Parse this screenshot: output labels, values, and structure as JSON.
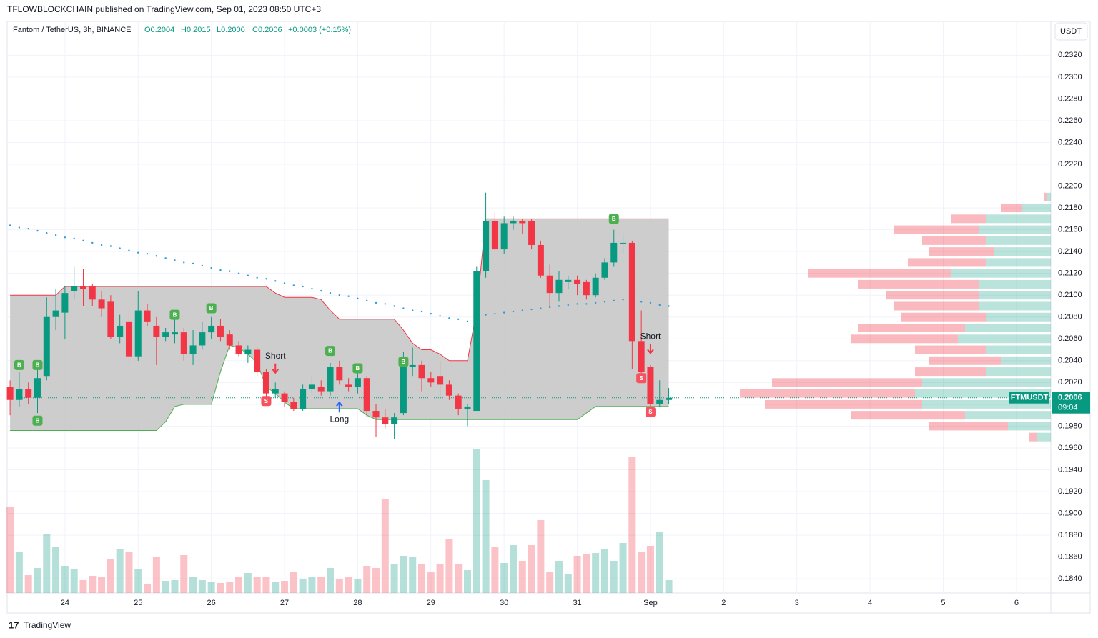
{
  "header": {
    "published": "TFLOWBLOCKCHAIN published on TradingView.com, Sep 01, 2023 08:50 UTC+3",
    "symbol": "Fantom / TetherUS, 3h, BINANCE",
    "open": "O0.2004",
    "high": "H0.2015",
    "low": "L0.2000",
    "close": "C0.2006",
    "change": "+0.0003 (+0.15%)",
    "currency": "USDT"
  },
  "footer": {
    "brand": "TradingView"
  },
  "chart_data": {
    "type": "candlestick",
    "x": [
      23.25,
      23.375,
      23.5,
      23.625,
      23.75,
      23.875,
      24,
      24.125,
      24.25,
      24.375,
      24.5,
      24.625,
      24.75,
      24.875,
      25,
      25.125,
      25.25,
      25.375,
      25.5,
      25.625,
      25.75,
      25.875,
      26,
      26.125,
      26.25,
      26.375,
      26.5,
      26.625,
      26.75,
      26.875,
      27,
      27.125,
      27.25,
      27.375,
      27.5,
      27.625,
      27.75,
      27.875,
      28,
      28.125,
      28.25,
      28.375,
      28.5,
      28.625,
      28.75,
      28.875,
      29,
      29.125,
      29.25,
      29.375,
      29.5,
      29.625,
      29.75,
      29.875,
      30,
      30.125,
      30.25,
      30.375,
      30.5,
      30.625,
      30.75,
      30.875,
      31,
      31.125,
      31.25,
      31.375,
      31.5,
      31.625,
      31.75,
      31.875,
      32,
      32.125,
      32.25
    ],
    "open": [
      0.2016,
      0.2004,
      0.2014,
      0.2006,
      0.2026,
      0.208,
      0.2084,
      0.2104,
      0.2108,
      0.2108,
      0.2096,
      0.2094,
      0.2062,
      0.2076,
      0.2044,
      0.2086,
      0.2072,
      0.2062,
      0.2064,
      0.2066,
      0.2046,
      0.2054,
      0.2066,
      0.2072,
      0.2064,
      0.2054,
      0.2046,
      0.205,
      0.203,
      0.201,
      0.201,
      0.2002,
      0.1996,
      0.2014,
      0.2016,
      0.2012,
      0.2034,
      0.2018,
      0.2016,
      0.2024,
      0.1994,
      0.1988,
      0.1982,
      0.1992,
      0.2034,
      0.2036,
      0.2024,
      0.2026,
      0.2018,
      0.2008,
      0.1996,
      0.1994,
      0.2122,
      0.2168,
      0.2142,
      0.2166,
      0.2168,
      0.2168,
      0.2146,
      0.2118,
      0.2102,
      0.2112,
      0.2114,
      0.2112,
      0.21,
      0.2116,
      0.213,
      0.2148,
      0.2148,
      0.2058,
      0.2034,
      0.2,
      0.2004
    ],
    "high": [
      0.2022,
      0.203,
      0.202,
      0.2034,
      0.2098,
      0.2106,
      0.2108,
      0.2126,
      0.2124,
      0.211,
      0.2104,
      0.21,
      0.2082,
      0.2088,
      0.2104,
      0.2092,
      0.208,
      0.207,
      0.2082,
      0.207,
      0.2068,
      0.2076,
      0.208,
      0.2078,
      0.2068,
      0.2058,
      0.2054,
      0.2052,
      0.2032,
      0.202,
      0.2012,
      0.2006,
      0.2018,
      0.2026,
      0.2022,
      0.2038,
      0.204,
      0.2024,
      0.2032,
      0.2026,
      0.2,
      0.1996,
      0.1992,
      0.2048,
      0.2052,
      0.204,
      0.203,
      0.204,
      0.2022,
      0.201,
      0.2,
      0.2126,
      0.2194,
      0.2176,
      0.2172,
      0.2172,
      0.217,
      0.217,
      0.215,
      0.2128,
      0.2122,
      0.2118,
      0.2118,
      0.2114,
      0.212,
      0.2134,
      0.216,
      0.2156,
      0.215,
      0.2086,
      0.2036,
      0.2022,
      0.2015
    ],
    "low": [
      0.199,
      0.1998,
      0.2,
      0.1992,
      0.2022,
      0.2068,
      0.206,
      0.2096,
      0.209,
      0.209,
      0.208,
      0.206,
      0.2056,
      0.2036,
      0.204,
      0.2072,
      0.2036,
      0.2058,
      0.2056,
      0.204,
      0.2036,
      0.205,
      0.206,
      0.2058,
      0.205,
      0.2044,
      0.2038,
      0.2026,
      0.2004,
      0.2006,
      0.1998,
      0.1994,
      0.1994,
      0.201,
      0.2008,
      0.2008,
      0.2018,
      0.2012,
      0.201,
      0.1988,
      0.197,
      0.1978,
      0.1968,
      0.199,
      0.2026,
      0.2012,
      0.2016,
      0.2008,
      0.2004,
      0.199,
      0.198,
      0.1994,
      0.2116,
      0.214,
      0.2138,
      0.216,
      0.2156,
      0.2142,
      0.2116,
      0.209,
      0.2094,
      0.2106,
      0.21,
      0.2096,
      0.2098,
      0.2114,
      0.2126,
      0.2138,
      0.2032,
      0.202,
      0.1996,
      0.1998,
      0.2
    ],
    "close": [
      0.2004,
      0.2014,
      0.2006,
      0.2024,
      0.208,
      0.2086,
      0.2102,
      0.2108,
      0.2106,
      0.2096,
      0.2088,
      0.2062,
      0.2072,
      0.2044,
      0.2086,
      0.2076,
      0.2062,
      0.2066,
      0.2066,
      0.2046,
      0.2054,
      0.2066,
      0.2072,
      0.2062,
      0.2054,
      0.2046,
      0.205,
      0.203,
      0.201,
      0.2014,
      0.2002,
      0.1996,
      0.2014,
      0.2018,
      0.2012,
      0.2034,
      0.2022,
      0.2016,
      0.2024,
      0.1994,
      0.1988,
      0.1982,
      0.1988,
      0.2034,
      0.2036,
      0.2024,
      0.202,
      0.2018,
      0.2008,
      0.1996,
      0.1998,
      0.2122,
      0.2168,
      0.2142,
      0.2166,
      0.2168,
      0.2166,
      0.2146,
      0.2118,
      0.2102,
      0.2114,
      0.2114,
      0.211,
      0.21,
      0.2116,
      0.213,
      0.2148,
      0.2148,
      0.2058,
      0.203,
      0.2,
      0.2004,
      0.2006
    ],
    "volume": [
      120,
      58,
      25,
      35,
      82,
      65,
      38,
      33,
      18,
      24,
      22,
      48,
      62,
      57,
      33,
      13,
      50,
      17,
      18,
      53,
      22,
      18,
      16,
      14,
      15,
      22,
      28,
      22,
      22,
      15,
      17,
      30,
      20,
      22,
      22,
      35,
      20,
      22,
      20,
      38,
      35,
      132,
      40,
      52,
      50,
      40,
      30,
      40,
      75,
      40,
      32,
      202,
      158,
      65,
      42,
      67,
      45,
      67,
      102,
      30,
      45,
      27,
      52,
      54,
      56,
      62,
      45,
      70,
      190,
      58,
      66,
      85,
      18
    ],
    "volume_lim": [
      0,
      800
    ],
    "channel_upper": [
      0.21,
      0.21,
      0.21,
      0.21,
      0.21,
      0.21,
      0.2108,
      0.2108,
      0.2108,
      0.2108,
      0.2108,
      0.2108,
      0.2108,
      0.2108,
      0.2108,
      0.2108,
      0.2108,
      0.2108,
      0.2108,
      0.2108,
      0.2108,
      0.2108,
      0.2108,
      0.2108,
      0.2108,
      0.2108,
      0.2108,
      0.2108,
      0.2108,
      0.2102,
      0.2098,
      0.2098,
      0.2098,
      0.2098,
      0.2096,
      0.2086,
      0.2078,
      0.2078,
      0.2078,
      0.2078,
      0.2078,
      0.2078,
      0.2078,
      0.2068,
      0.2056,
      0.205,
      0.205,
      0.2046,
      0.204,
      0.204,
      0.204,
      0.2086,
      0.217,
      0.217,
      0.217,
      0.217,
      0.217,
      0.217,
      0.217,
      0.217,
      0.217,
      0.217,
      0.217,
      0.217,
      0.217,
      0.217,
      0.217,
      0.217,
      0.217,
      0.217,
      0.217,
      0.217,
      0.217
    ],
    "channel_lower": [
      0.1976,
      0.1976,
      0.1976,
      0.1976,
      0.1976,
      0.1976,
      0.1976,
      0.1976,
      0.1976,
      0.1976,
      0.1976,
      0.1976,
      0.1976,
      0.1976,
      0.1976,
      0.1976,
      0.1976,
      0.1984,
      0.1998,
      0.2,
      0.2,
      0.2,
      0.2,
      0.203,
      0.2054,
      0.2052,
      0.2046,
      0.2038,
      0.2016,
      0.201,
      0.2002,
      0.1996,
      0.1996,
      0.1996,
      0.1996,
      0.1996,
      0.1996,
      0.1996,
      0.1996,
      0.199,
      0.1986,
      0.1986,
      0.1986,
      0.1986,
      0.1986,
      0.1986,
      0.1986,
      0.1986,
      0.1986,
      0.1986,
      0.1986,
      0.1986,
      0.1986,
      0.1986,
      0.1986,
      0.1986,
      0.1986,
      0.1986,
      0.1986,
      0.1986,
      0.1986,
      0.1986,
      0.1986,
      0.1992,
      0.1998,
      0.1998,
      0.1998,
      0.1998,
      0.1998,
      0.1998,
      0.1998,
      0.1998,
      0.1998
    ],
    "moving_average": [
      0.2164,
      0.2162,
      0.2161,
      0.2159,
      0.2157,
      0.2155,
      0.2153,
      0.2152,
      0.215,
      0.2148,
      0.2146,
      0.2145,
      0.2143,
      0.2141,
      0.2139,
      0.2138,
      0.2136,
      0.2134,
      0.2132,
      0.213,
      0.2129,
      0.2127,
      0.2125,
      0.2123,
      0.2122,
      0.212,
      0.2118,
      0.2116,
      0.2115,
      0.2113,
      0.2111,
      0.2109,
      0.2108,
      0.2106,
      0.2104,
      0.2102,
      0.21,
      0.2099,
      0.2097,
      0.2095,
      0.2093,
      0.2092,
      0.209,
      0.2088,
      0.2086,
      0.2085,
      0.2083,
      0.2081,
      0.2079,
      0.2078,
      0.2076,
      0.208,
      0.2082,
      0.2083,
      0.2084,
      0.2085,
      0.2086,
      0.2087,
      0.2088,
      0.2089,
      0.209,
      0.2091,
      0.2092,
      0.2092,
      0.2093,
      0.2094,
      0.2095,
      0.2096,
      0.2096,
      0.2094,
      0.2093,
      0.2091,
      0.209
    ],
    "volume_profile": {
      "prices": [
        0.219,
        0.218,
        0.217,
        0.216,
        0.215,
        0.214,
        0.213,
        0.212,
        0.211,
        0.21,
        0.209,
        0.208,
        0.207,
        0.206,
        0.205,
        0.204,
        0.203,
        0.202,
        0.201,
        0.2,
        0.199,
        0.198,
        0.197
      ],
      "up": [
        6,
        40,
        90,
        100,
        90,
        80,
        90,
        140,
        100,
        100,
        100,
        90,
        120,
        130,
        90,
        70,
        90,
        180,
        190,
        180,
        120,
        60,
        20
      ],
      "down": [
        4,
        30,
        50,
        120,
        90,
        90,
        110,
        200,
        170,
        130,
        120,
        120,
        150,
        150,
        100,
        100,
        100,
        210,
        245,
        220,
        160,
        110,
        10
      ],
      "lim": [
        0,
        1460
      ]
    },
    "signals": [
      {
        "x": 23.375,
        "price": 0.2036,
        "label": "B"
      },
      {
        "x": 23.625,
        "price": 0.2036,
        "label": "B"
      },
      {
        "x": 23.625,
        "price": 0.1985,
        "label": "B"
      },
      {
        "x": 25.5,
        "price": 0.2082,
        "label": "B"
      },
      {
        "x": 26.0,
        "price": 0.2088,
        "label": "B"
      },
      {
        "x": 27.625,
        "price": 0.2049,
        "label": "B"
      },
      {
        "x": 28.0,
        "price": 0.2033,
        "label": "B"
      },
      {
        "x": 28.625,
        "price": 0.2039,
        "label": "B"
      },
      {
        "x": 31.5,
        "price": 0.217,
        "label": "B"
      },
      {
        "x": 26.75,
        "price": 0.2003,
        "label": "S"
      },
      {
        "x": 31.875,
        "price": 0.2024,
        "label": "S"
      },
      {
        "x": 32.0,
        "price": 0.1993,
        "label": "S"
      }
    ],
    "annotations": [
      {
        "x": 26.875,
        "price": 0.2044,
        "text": "Short"
      },
      {
        "x": 27.75,
        "price": 0.1986,
        "text": "Long"
      },
      {
        "x": 32.0,
        "price": 0.2062,
        "text": "Short"
      }
    ],
    "last_price": 0.2006,
    "price_tag": {
      "symbol": "FTMUSDT",
      "countdown": "09:04"
    },
    "colors": {
      "up": "#089981",
      "down": "#f23645",
      "channel": "#c8c8c8",
      "ma": "#2e9bd6"
    },
    "xlim": [
      23.21,
      37.47
    ],
    "xticks": [
      24,
      25,
      26,
      27,
      28,
      29,
      30,
      31,
      {
        "value": 32,
        "label": "Sep"
      },
      {
        "value": 33,
        "label": "2"
      },
      {
        "value": 34,
        "label": "3"
      },
      {
        "value": 35,
        "label": "4"
      },
      {
        "value": 36,
        "label": "5"
      },
      {
        "value": 37,
        "label": "6"
      }
    ],
    "ylim": [
      0.1827,
      0.2351
    ],
    "yticks": [
      {
        "value": 0.184,
        "label": "0.1840"
      },
      {
        "value": 0.186,
        "label": "0.1860"
      },
      {
        "value": 0.188,
        "label": "0.1880"
      },
      {
        "value": 0.19,
        "label": "0.1900"
      },
      {
        "value": 0.192,
        "label": "0.1920"
      },
      {
        "value": 0.194,
        "label": "0.1940"
      },
      {
        "value": 0.196,
        "label": "0.1960"
      },
      {
        "value": 0.198,
        "label": "0.1980"
      },
      {
        "value": 0.2,
        "label": "0.2000"
      },
      {
        "value": 0.202,
        "label": "0.2020"
      },
      {
        "value": 0.204,
        "label": "0.2040"
      },
      {
        "value": 0.206,
        "label": "0.2060"
      },
      {
        "value": 0.208,
        "label": "0.2080"
      },
      {
        "value": 0.21,
        "label": "0.2100"
      },
      {
        "value": 0.212,
        "label": "0.2120"
      },
      {
        "value": 0.214,
        "label": "0.2140"
      },
      {
        "value": 0.216,
        "label": "0.2160"
      },
      {
        "value": 0.218,
        "label": "0.2180"
      },
      {
        "value": 0.22,
        "label": "0.2200"
      },
      {
        "value": 0.222,
        "label": "0.2220"
      },
      {
        "value": 0.224,
        "label": "0.2240"
      },
      {
        "value": 0.226,
        "label": "0.2260"
      },
      {
        "value": 0.228,
        "label": "0.2280"
      },
      {
        "value": 0.23,
        "label": "0.2300"
      },
      {
        "value": 0.232,
        "label": "0.2320"
      }
    ],
    "grid": true
  }
}
